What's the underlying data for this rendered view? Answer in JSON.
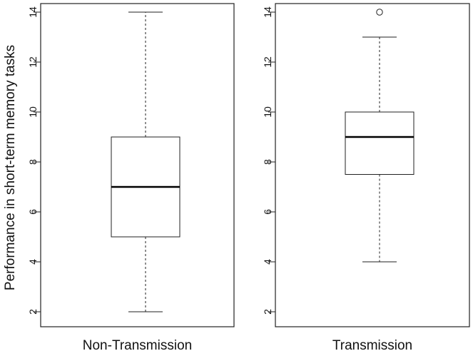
{
  "chart_data": [
    {
      "type": "boxplot",
      "ylabel": "Performance in short-term memory tasks",
      "xlabel": "Non-Transmission",
      "ylim": [
        1.6,
        14.4
      ],
      "yticks": [
        2,
        4,
        6,
        8,
        10,
        12,
        14
      ],
      "ytick_labels": [
        "2",
        "4",
        "6",
        "8",
        "10",
        "12",
        "14"
      ],
      "box": {
        "whisker_low": 2,
        "q1": 5,
        "median": 7,
        "q3": 9,
        "whisker_high": 14,
        "outliers": []
      }
    },
    {
      "type": "boxplot",
      "ylabel": "",
      "xlabel": "Transmission",
      "ylim": [
        1.6,
        14.4
      ],
      "yticks": [
        2,
        4,
        6,
        8,
        10,
        12,
        14
      ],
      "ytick_labels": [
        "2",
        "4",
        "6",
        "8",
        "10",
        "12",
        "14"
      ],
      "box": {
        "whisker_low": 4,
        "q1": 7.5,
        "median": 9,
        "q3": 10,
        "whisker_high": 13,
        "outliers": [
          14
        ]
      }
    }
  ]
}
